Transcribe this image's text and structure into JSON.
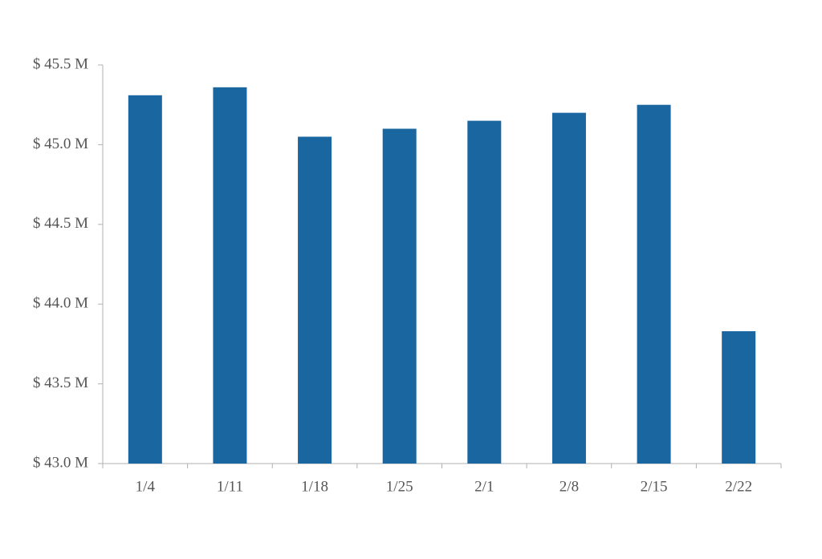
{
  "chart_data": {
    "type": "bar",
    "categories": [
      "1/4",
      "1/11",
      "1/18",
      "1/25",
      "2/1",
      "2/8",
      "2/15",
      "2/22"
    ],
    "values": [
      45.31,
      45.36,
      45.05,
      45.1,
      45.15,
      45.2,
      45.25,
      43.83
    ],
    "color": "#1a66a0",
    "ylim": [
      43.0,
      45.5
    ],
    "yticks": [
      {
        "value": 43.0,
        "label": "$ 43.0 M"
      },
      {
        "value": 43.5,
        "label": "$ 43.5 M"
      },
      {
        "value": 44.0,
        "label": "$ 44.0 M"
      },
      {
        "value": 44.5,
        "label": "$ 44.5 M"
      },
      {
        "value": 45.0,
        "label": "$ 45.0 M"
      },
      {
        "value": 45.5,
        "label": "$ 45.5 M"
      }
    ],
    "grid": false
  }
}
